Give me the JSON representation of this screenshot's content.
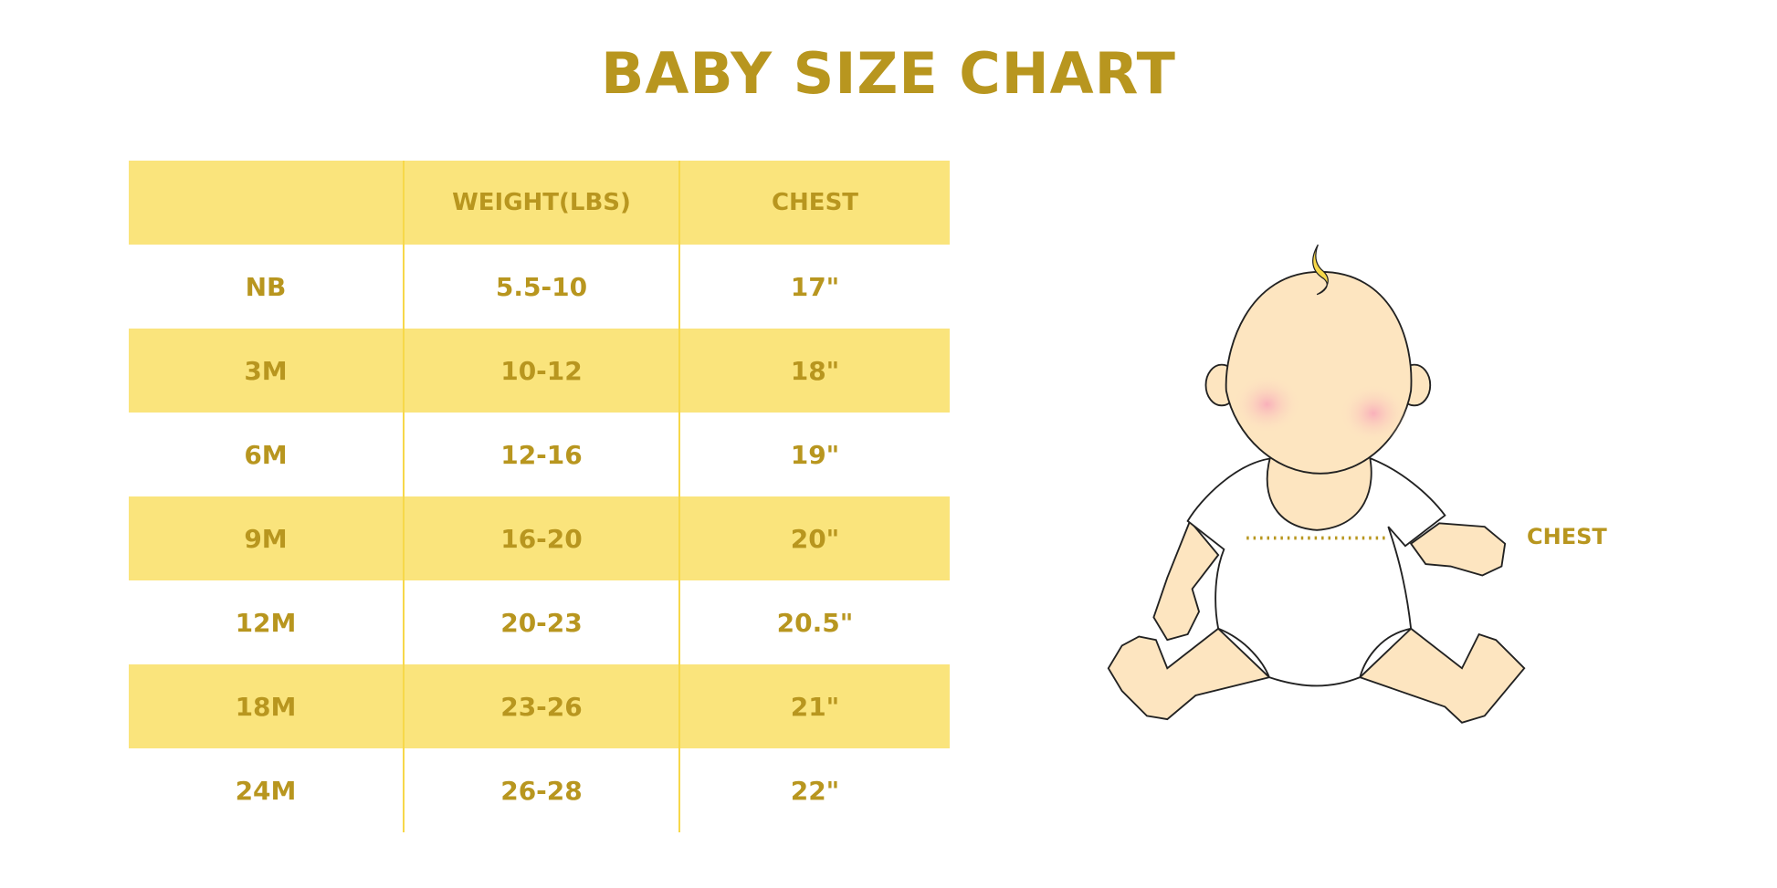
{
  "title": "BABY SIZE CHART",
  "table": {
    "headers": [
      "",
      "WEIGHT(LBS)",
      "CHEST"
    ],
    "rows": [
      [
        "NB",
        "5.5-10",
        "17\""
      ],
      [
        "3M",
        "10-12",
        "18\""
      ],
      [
        "6M",
        "12-16",
        "19\""
      ],
      [
        "9M",
        "16-20",
        "20\""
      ],
      [
        "12M",
        "20-23",
        "20.5\""
      ],
      [
        "18M",
        "23-26",
        "21\""
      ],
      [
        "24M",
        "26-28",
        "22\""
      ]
    ]
  },
  "illustration": {
    "chest_label": "CHEST"
  },
  "colors": {
    "text": "#b8961f",
    "row_fill": "#fae47c",
    "skin": "#fde5c0",
    "cheek": "#f9b8bf"
  }
}
